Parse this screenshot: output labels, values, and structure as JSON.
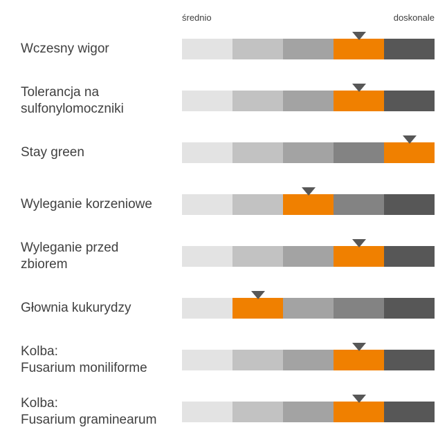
{
  "scale": {
    "low_label": "średnio",
    "high_label": "doskonale",
    "levels": 5
  },
  "colors": {
    "segments": [
      "#e3e3e3",
      "#c2c2c2",
      "#a3a3a3",
      "#838383",
      "#575757"
    ],
    "highlight": "#f08000",
    "marker": "#575757"
  },
  "chart_data": {
    "type": "bar",
    "title": "",
    "xlabel": "",
    "ylabel": "",
    "scale_labels": [
      "średnio",
      "doskonale"
    ],
    "xlim": [
      1,
      5
    ],
    "categories": [
      "Wczesny wigor",
      "Tolerancja na sulfonylomoczniki",
      "Stay green",
      "Wyleganie korzeniowe",
      "Wyleganie przed zbiorem",
      "Głownia kukurydzy",
      "Kolba: Fusarium moniliforme",
      "Kolba: Fusarium graminearum"
    ],
    "values": [
      4,
      4,
      5,
      3,
      4,
      2,
      4,
      4
    ],
    "rows": [
      {
        "label": "Wczesny wigor",
        "value": 4
      },
      {
        "label": "Tolerancja na\nsulfonylomoczniki",
        "value": 4
      },
      {
        "label": "Stay green",
        "value": 5
      },
      {
        "label": "Wyleganie korzeniowe",
        "value": 3
      },
      {
        "label": "Wyleganie przed\nzbiorem",
        "value": 4
      },
      {
        "label": "Głownia kukurydzy",
        "value": 2
      },
      {
        "label": "Kolba:\nFusarium moniliforme",
        "value": 4
      },
      {
        "label": "Kolba:\nFusarium graminearum",
        "value": 4
      }
    ]
  }
}
